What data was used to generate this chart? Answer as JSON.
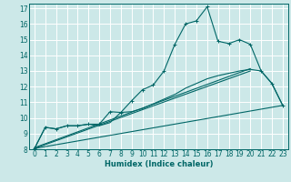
{
  "bg_color": "#cce8e8",
  "grid_color": "#ffffff",
  "line_color": "#006666",
  "xlabel": "Humidex (Indice chaleur)",
  "xlim": [
    -0.5,
    23.5
  ],
  "ylim": [
    8,
    17.3
  ],
  "yticks": [
    8,
    9,
    10,
    11,
    12,
    13,
    14,
    15,
    16,
    17
  ],
  "xticks": [
    0,
    1,
    2,
    3,
    4,
    5,
    6,
    7,
    8,
    9,
    10,
    11,
    12,
    13,
    14,
    15,
    16,
    17,
    18,
    19,
    20,
    21,
    22,
    23
  ],
  "series1_x": [
    0,
    1,
    2,
    3,
    4,
    5,
    6,
    7,
    8,
    9,
    10,
    11,
    12,
    13,
    14,
    15,
    16,
    17,
    18,
    19,
    20,
    21,
    22,
    23
  ],
  "series1_y": [
    8.05,
    9.4,
    9.3,
    9.5,
    9.5,
    9.6,
    9.6,
    10.4,
    10.35,
    11.1,
    11.8,
    12.1,
    13.0,
    14.7,
    16.0,
    16.2,
    17.1,
    14.9,
    14.75,
    15.0,
    14.7,
    13.0,
    12.2,
    10.8
  ],
  "series2_x": [
    0,
    1,
    2,
    3,
    4,
    5,
    6,
    7,
    8,
    9,
    10,
    11,
    12,
    13,
    14,
    15,
    16,
    17,
    18,
    19,
    20,
    21,
    22,
    23
  ],
  "series2_y": [
    8.05,
    9.4,
    9.3,
    9.5,
    9.5,
    9.6,
    9.5,
    9.7,
    10.35,
    10.4,
    10.6,
    10.9,
    11.2,
    11.5,
    11.9,
    12.2,
    12.5,
    12.7,
    12.85,
    13.0,
    13.1,
    13.0,
    12.2,
    10.8
  ],
  "series3_x": [
    0,
    23
  ],
  "series3_y": [
    8.05,
    10.8
  ],
  "series4_x": [
    0,
    20
  ],
  "series4_y": [
    8.05,
    13.0
  ],
  "series5_x": [
    0,
    20
  ],
  "series5_y": [
    8.1,
    13.15
  ]
}
